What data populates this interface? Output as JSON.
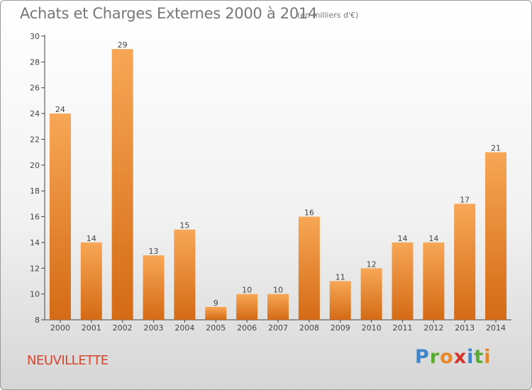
{
  "header": {
    "title": "Achats et Charges Externes 2000 à 2014",
    "subtitle": "(en milliers d'€)"
  },
  "footer": {
    "commune": "NEUVILLETTE",
    "logo": "Proxiti"
  },
  "colors": {
    "bar_light": "#f7a756",
    "bar_dark": "#d46a15",
    "commune": "#d5462f",
    "logo_letters": [
      "#3f83c8",
      "#5aab33",
      "#e8862a",
      "#d6322a",
      "#3f83c8",
      "#5aab33",
      "#e8862a"
    ]
  },
  "chart_data": {
    "type": "bar",
    "title": "Achats et Charges Externes 2000 à 2014",
    "subtitle": "(en milliers d'€)",
    "categories": [
      "2000",
      "2001",
      "2002",
      "2003",
      "2004",
      "2005",
      "2006",
      "2007",
      "2008",
      "2009",
      "2010",
      "2011",
      "2012",
      "2013",
      "2014"
    ],
    "values": [
      24,
      14,
      29,
      13,
      15,
      9,
      10,
      10,
      16,
      11,
      12,
      14,
      14,
      17,
      21
    ],
    "xlabel": "",
    "ylabel": "",
    "ylim": [
      8,
      30
    ],
    "yticks": [
      8,
      10,
      12,
      14,
      16,
      18,
      20,
      22,
      24,
      26,
      28,
      30
    ],
    "grid": false,
    "legend": "none"
  }
}
